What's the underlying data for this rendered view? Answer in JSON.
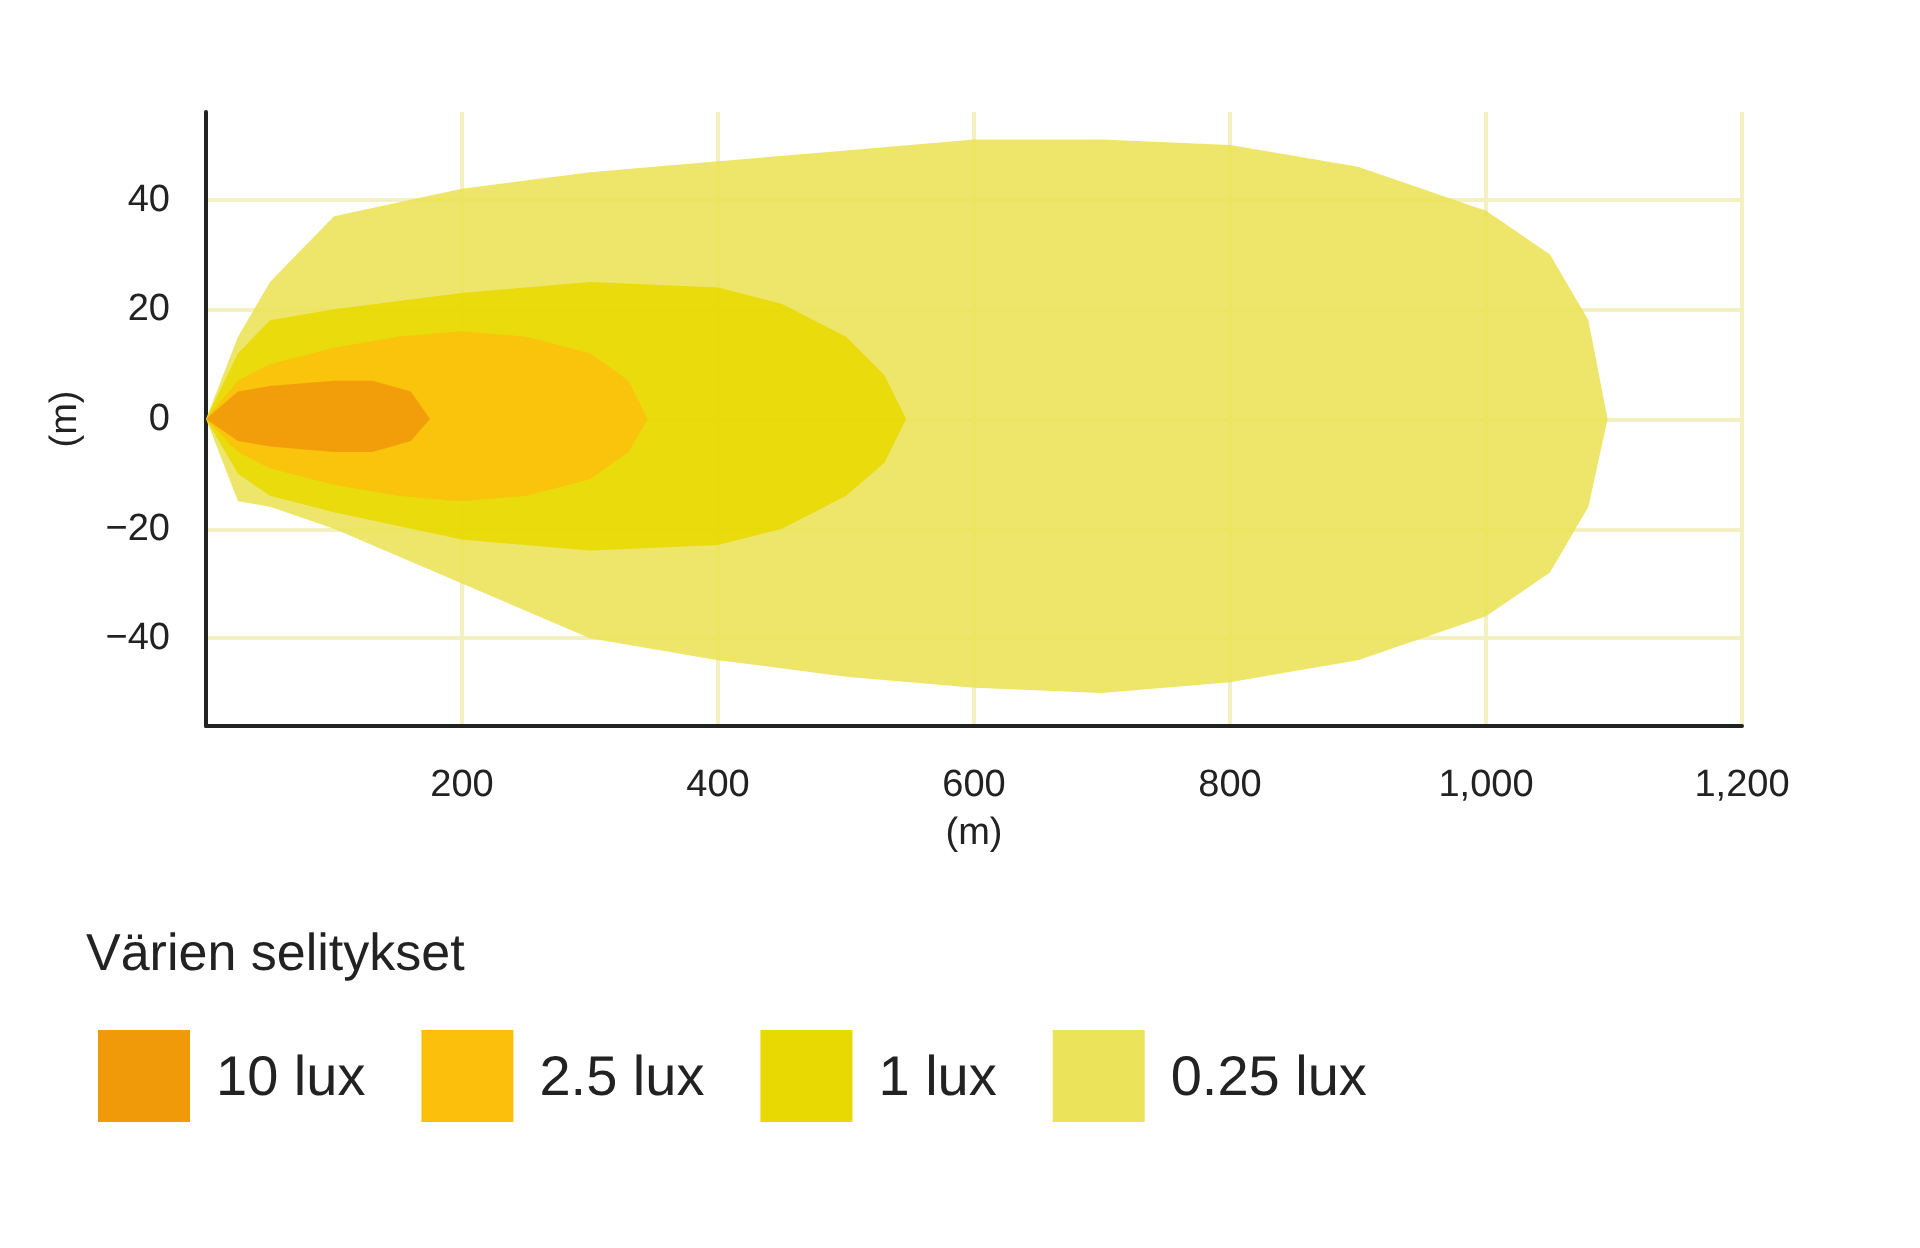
{
  "chart_data": {
    "type": "area",
    "xlabel": "(m)",
    "ylabel": "(m)",
    "legend_title": "Värien selitykset",
    "legend": "bottom left",
    "grid": true,
    "xlim": [
      0,
      1200
    ],
    "xticks": [
      200,
      400,
      600,
      800,
      {
        "value": 1000,
        "label": "1,000"
      },
      {
        "value": 1200,
        "label": "1,200"
      }
    ],
    "ylim": [
      -56,
      56
    ],
    "yticks": [
      {
        "value": -40,
        "label": "−40"
      },
      {
        "value": -20,
        "label": "−20"
      },
      0,
      20,
      40
    ],
    "series": [
      {
        "name": "10 lux",
        "color": "#f09a0a",
        "x": [
          0,
          25,
          50,
          100,
          130,
          160,
          175,
          160,
          130,
          100,
          50,
          25
        ],
        "values": [
          0,
          5,
          6,
          7,
          7,
          5,
          0,
          -4,
          -6,
          -6,
          -5,
          -4
        ]
      },
      {
        "name": "2.5 lux",
        "color": "#fcc00c",
        "x": [
          0,
          25,
          50,
          100,
          150,
          200,
          250,
          300,
          330,
          345,
          330,
          300,
          250,
          200,
          150,
          100,
          50,
          25
        ],
        "values": [
          0,
          7,
          10,
          13,
          15,
          16,
          15,
          12,
          7,
          0,
          -6,
          -11,
          -14,
          -15,
          -14,
          -12,
          -9,
          -6
        ]
      },
      {
        "name": "1 lux",
        "color": "#e8d902",
        "x": [
          0,
          25,
          50,
          100,
          200,
          300,
          400,
          450,
          500,
          530,
          547,
          530,
          500,
          450,
          400,
          300,
          200,
          100,
          50,
          25
        ],
        "values": [
          0,
          12,
          18,
          20,
          23,
          25,
          24,
          21,
          15,
          8,
          0,
          -8,
          -14,
          -20,
          -23,
          -24,
          -22,
          -17,
          -14,
          -10
        ]
      },
      {
        "name": "0.25 lux",
        "color": "#ebe35a",
        "x": [
          0,
          25,
          50,
          100,
          200,
          300,
          400,
          500,
          600,
          700,
          800,
          900,
          1000,
          1050,
          1080,
          1095,
          1080,
          1050,
          1000,
          900,
          800,
          700,
          600,
          500,
          400,
          300,
          200,
          100,
          50,
          25
        ],
        "values": [
          0,
          15,
          25,
          37,
          42,
          45,
          47,
          49,
          51,
          51,
          50,
          46,
          38,
          30,
          18,
          0,
          -16,
          -28,
          -36,
          -44,
          -48,
          -50,
          -49,
          -47,
          -44,
          -40,
          -30,
          -20,
          -16,
          -15
        ]
      }
    ]
  }
}
